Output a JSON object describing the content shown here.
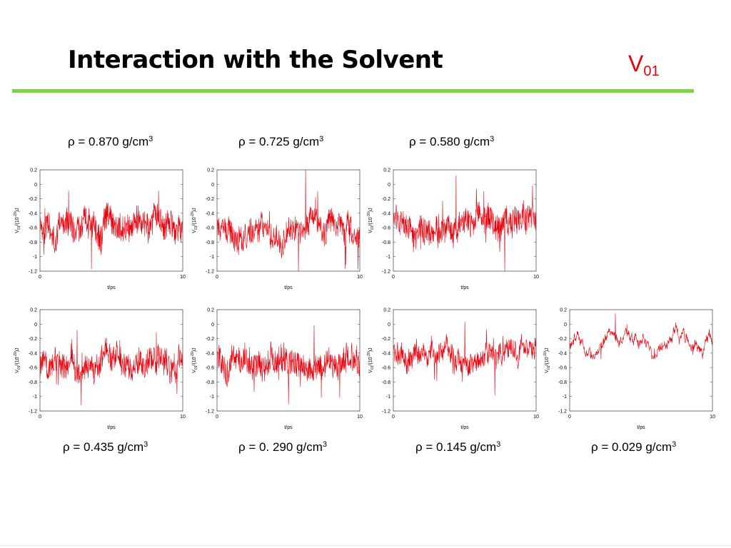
{
  "slide": {
    "title": "Interaction with the Solvent",
    "symbol": "V",
    "symbol_sub": "01",
    "accent_rule_color": "#7ad83c",
    "symbol_color": "#e8000b",
    "series_color": "#e8000b"
  },
  "chart_data": [
    {
      "type": "line",
      "label_prefix": "ρ = ",
      "label_value": "0.870",
      "label_unit": " g/cm",
      "label_exp": "3",
      "xlabel": "t/ps",
      "ylabel_main": "V",
      "ylabel_sub": "01",
      "ylabel_mid": "/(10",
      "ylabel_exp": "-20",
      "ylabel_end": ")J",
      "xlim": [
        0,
        10
      ],
      "ylim": [
        -1.2,
        0.2
      ],
      "xticks": [
        0,
        10
      ],
      "yticks": [
        0.2,
        0,
        -0.2,
        -0.4,
        -0.6,
        -0.8,
        -1,
        -1.2
      ],
      "mean": -0.62,
      "amplitude": 0.18,
      "min": -1.17,
      "max": -0.09
    },
    {
      "type": "line",
      "label_prefix": "ρ = ",
      "label_value": "0.725",
      "label_unit": " g/cm",
      "label_exp": "3",
      "xlabel": "t/ps",
      "ylabel_main": "V",
      "ylabel_sub": "01",
      "ylabel_mid": "/(10",
      "ylabel_exp": "-20",
      "ylabel_end": ")J",
      "xlim": [
        0,
        10
      ],
      "ylim": [
        -1.2,
        0.2
      ],
      "xticks": [
        0,
        10
      ],
      "yticks": [
        0.2,
        0,
        -0.2,
        -0.4,
        -0.6,
        -0.8,
        -1,
        -1.2
      ],
      "mean": -0.66,
      "amplitude": 0.17,
      "min": -1.2,
      "max": 0.2
    },
    {
      "type": "line",
      "label_prefix": "ρ = ",
      "label_value": "0.580",
      "label_unit": " g/cm",
      "label_exp": "3",
      "xlabel": "t/ps",
      "ylabel_main": "V",
      "ylabel_sub": "01",
      "ylabel_mid": "/(10",
      "ylabel_exp": "-20",
      "ylabel_end": ")J",
      "xlim": [
        0,
        10
      ],
      "ylim": [
        -1.2,
        0.2
      ],
      "xticks": [
        0,
        10
      ],
      "yticks": [
        0.2,
        0,
        -0.2,
        -0.4,
        -0.6,
        -0.8,
        -1,
        -1.2
      ],
      "mean": -0.55,
      "amplitude": 0.18,
      "min": -1.2,
      "max": 0.12
    },
    {
      "type": "line",
      "label_prefix": "ρ = ",
      "label_value": "0.435",
      "label_unit": " g/cm",
      "label_exp": "3",
      "xlabel": "t/ps",
      "ylabel_main": "V",
      "ylabel_sub": "01",
      "ylabel_mid": "/(10",
      "ylabel_exp": "-20",
      "ylabel_end": ")J",
      "xlim": [
        0,
        10
      ],
      "ylim": [
        -1.2,
        0.2
      ],
      "xticks": [
        0,
        10
      ],
      "yticks": [
        0.2,
        0,
        -0.2,
        -0.4,
        -0.6,
        -0.8,
        -1,
        -1.2
      ],
      "mean": -0.56,
      "amplitude": 0.18,
      "min": -1.12,
      "max": -0.08
    },
    {
      "type": "line",
      "label_prefix": "ρ = ",
      "label_value": "0. 290",
      "label_unit": " g/cm",
      "label_exp": "3",
      "xlabel": "t/ps",
      "ylabel_main": "V",
      "ylabel_sub": "01",
      "ylabel_mid": "/(10",
      "ylabel_exp": "-20",
      "ylabel_end": ")J",
      "xlim": [
        0,
        10
      ],
      "ylim": [
        -1.2,
        0.2
      ],
      "xticks": [
        0,
        10
      ],
      "yticks": [
        0.2,
        0,
        -0.2,
        -0.4,
        -0.6,
        -0.8,
        -1,
        -1.2
      ],
      "mean": -0.55,
      "amplitude": 0.18,
      "min": -1.1,
      "max": -0.02
    },
    {
      "type": "line",
      "label_prefix": "ρ = ",
      "label_value": "0.145",
      "label_unit": " g/cm",
      "label_exp": "3",
      "xlabel": "t/ps",
      "ylabel_main": "V",
      "ylabel_sub": "01",
      "ylabel_mid": "/(10",
      "ylabel_exp": "-20",
      "ylabel_end": ")J",
      "xlim": [
        0,
        10
      ],
      "ylim": [
        -1.2,
        0.2
      ],
      "xticks": [
        0,
        10
      ],
      "yticks": [
        0.2,
        0,
        -0.2,
        -0.4,
        -0.6,
        -0.8,
        -1,
        -1.2
      ],
      "mean": -0.4,
      "amplitude": 0.13,
      "min": -0.98,
      "max": 0.03
    },
    {
      "type": "line",
      "label_prefix": "ρ = ",
      "label_value": "0.029",
      "label_unit": " g/cm",
      "label_exp": "3",
      "xlabel": "t/ps",
      "ylabel_main": "V",
      "ylabel_sub": "01",
      "ylabel_mid": "/(10",
      "ylabel_exp": "-20",
      "ylabel_end": ")J",
      "xlim": [
        0,
        10
      ],
      "ylim": [
        -1.2,
        0.2
      ],
      "xticks": [
        0,
        10
      ],
      "yticks": [
        0.2,
        0,
        -0.2,
        -0.4,
        -0.6,
        -0.8,
        -1,
        -1.2
      ],
      "mean": -0.28,
      "amplitude": 0.04,
      "min": -0.48,
      "max": 0.15
    }
  ]
}
